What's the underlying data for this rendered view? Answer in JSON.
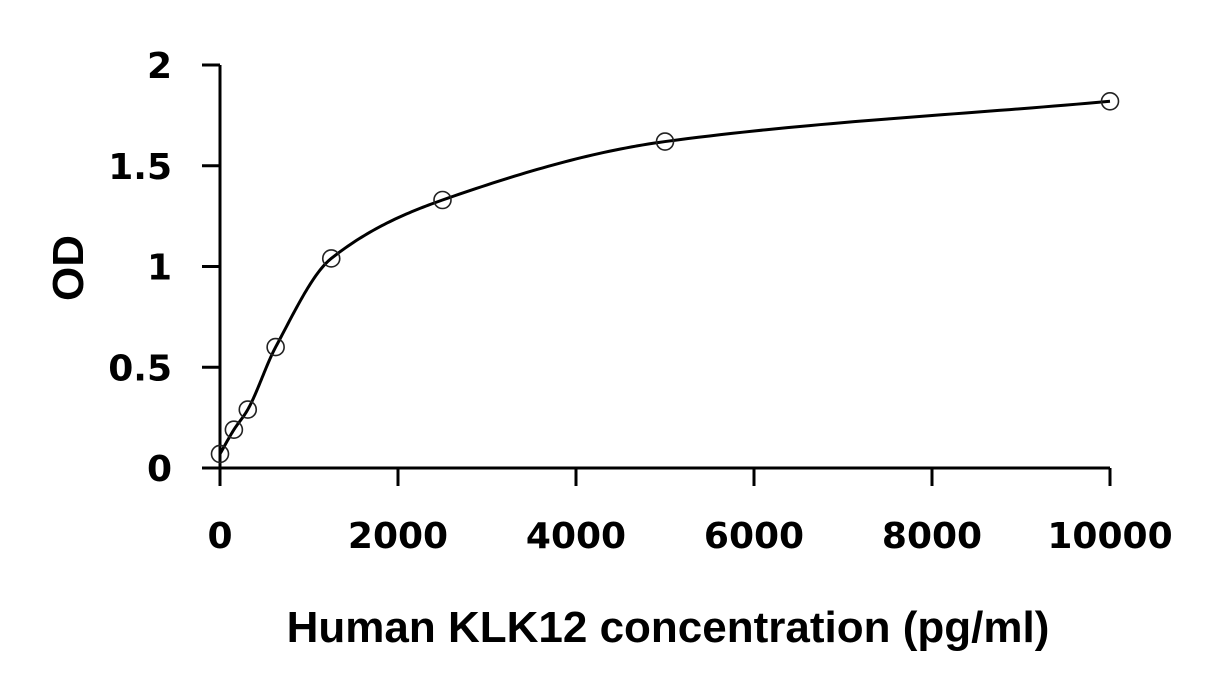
{
  "chart_data": {
    "type": "scatter",
    "xlabel": "Human KLK12 concentration (pg/ml)",
    "ylabel": "OD",
    "xlim": [
      0,
      10000
    ],
    "ylim": [
      0,
      2
    ],
    "xticks": [
      0,
      2000,
      4000,
      6000,
      8000,
      10000
    ],
    "yticks": [
      0,
      0.5,
      1,
      1.5,
      2
    ],
    "xtick_labels": [
      "0",
      "2000",
      "4000",
      "6000",
      "8000",
      "10000"
    ],
    "ytick_labels": [
      "0",
      "0.5",
      "1",
      "1.5",
      "2"
    ],
    "grid": false,
    "legend": "none",
    "series": [
      {
        "x": [
          0,
          156,
          312,
          625,
          1250,
          2500,
          5000,
          10000
        ],
        "y": [
          0.07,
          0.19,
          0.29,
          0.6,
          1.04,
          1.33,
          1.62,
          1.82
        ],
        "marker": "open-circle",
        "fit_curve": true
      }
    ]
  }
}
